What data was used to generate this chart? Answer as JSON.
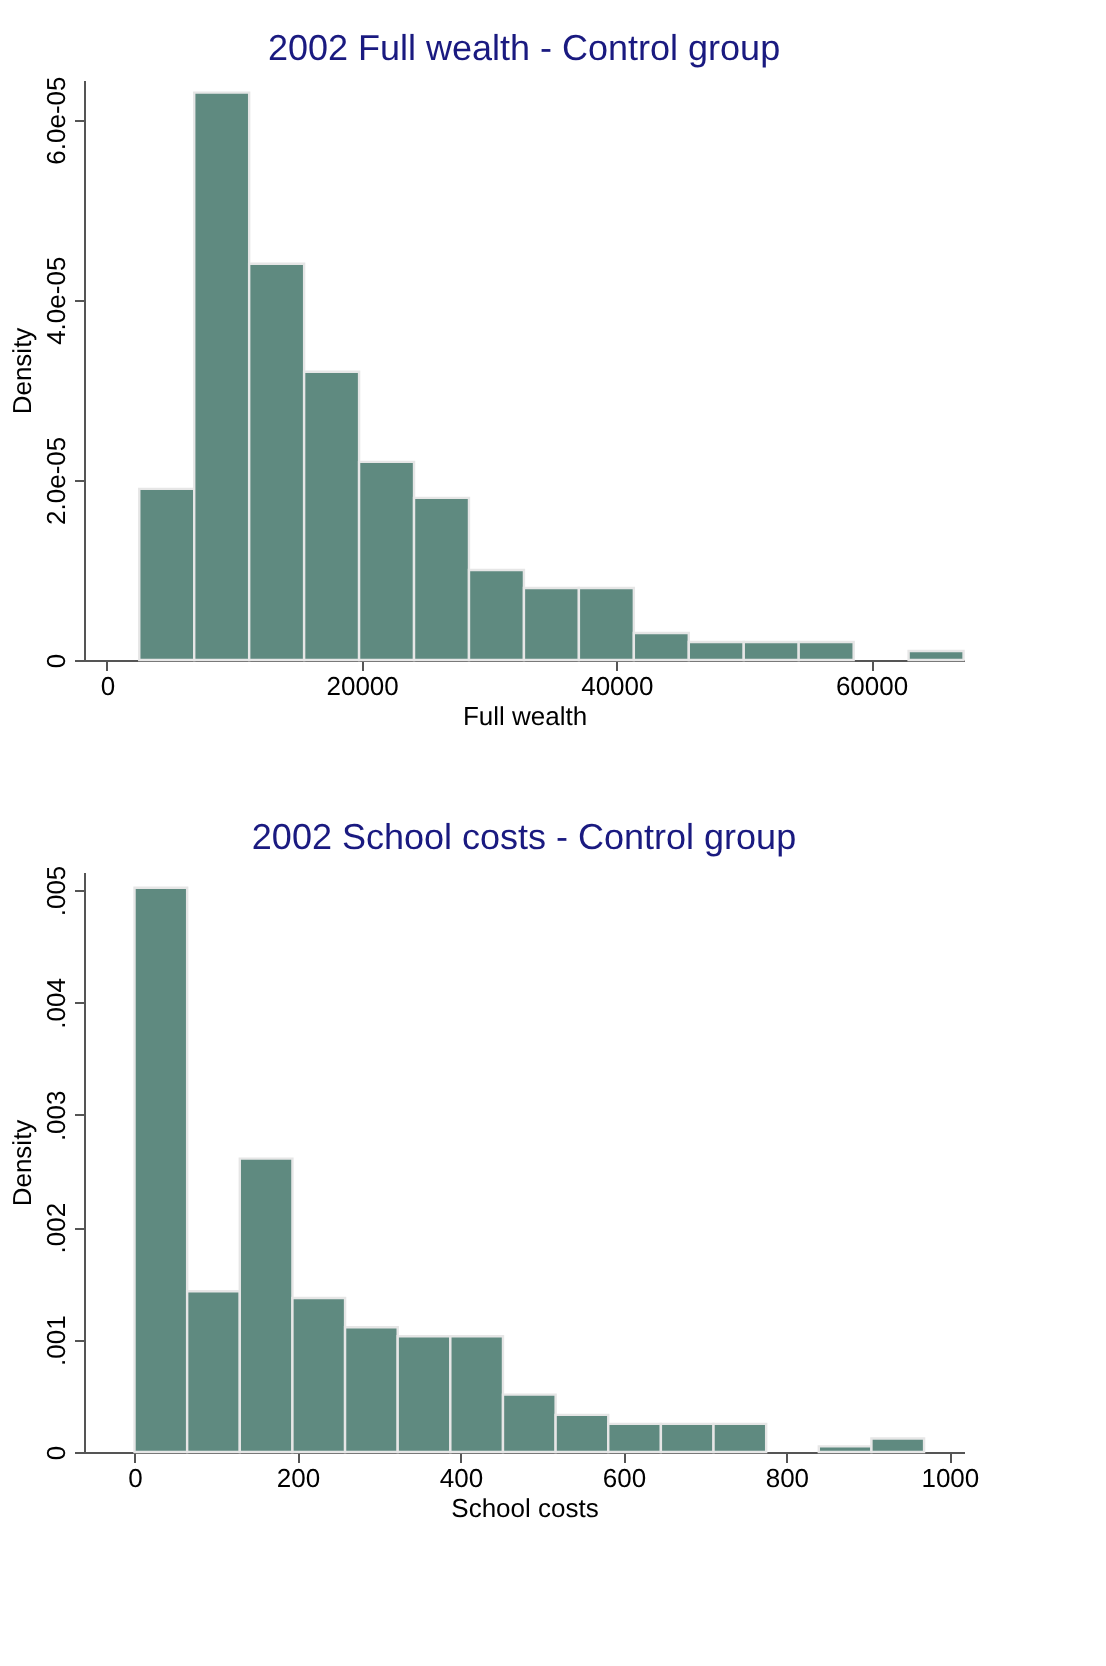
{
  "chart_data": [
    {
      "type": "histogram",
      "title": "2002 Full wealth - Control group",
      "xlabel": "Full wealth",
      "ylabel": "Density",
      "color": "#5f8a80",
      "grid": false,
      "bins": [
        2540,
        6855,
        11170,
        15485,
        19800,
        24115,
        28430,
        32745,
        37060,
        41375,
        45690,
        50005,
        54320,
        58635,
        62950,
        67265
      ],
      "values": [
        1.9e-05,
        6.3e-05,
        4.4e-05,
        3.2e-05,
        2.2e-05,
        1.8e-05,
        1e-05,
        8e-06,
        8e-06,
        3e-06,
        2e-06,
        2e-06,
        2e-06,
        0,
        1e-06
      ],
      "xlim": [
        -1800,
        67300
      ],
      "xticks": [
        0,
        20000,
        40000,
        60000
      ],
      "ylim": [
        0,
        6.44e-05
      ],
      "yticks": [
        0,
        {
          "value": 2e-05,
          "label": "2.0e-05"
        },
        {
          "value": 4e-05,
          "label": "4.0e-05"
        },
        {
          "value": 6e-05,
          "label": "6.0e-05"
        }
      ]
    },
    {
      "type": "histogram",
      "title": "2002 School costs - Control group",
      "xlabel": "School costs",
      "ylabel": "Density",
      "color": "#5f8a80",
      "grid": false,
      "bins": [
        0,
        64.6,
        129.2,
        193.8,
        258.4,
        323,
        387.6,
        452.2,
        516.8,
        581.4,
        646,
        710.6,
        775.2,
        839.8,
        904.4,
        969
      ],
      "values": [
        0.00502,
        0.00143,
        0.00261,
        0.00137,
        0.00111,
        0.00103,
        0.00103,
        0.00051,
        0.00033,
        0.00025,
        0.00025,
        0.00025,
        0,
        5e-05,
        0.00012
      ],
      "xlim": [
        -62,
        1018
      ],
      "xticks": [
        0,
        200,
        400,
        600,
        800,
        1000
      ],
      "ylim": [
        0,
        0.00516
      ],
      "yticks": [
        0,
        {
          "value": 0.001,
          "label": ".001"
        },
        {
          "value": 0.002,
          "label": ".002"
        },
        {
          "value": 0.003,
          "label": ".003"
        },
        {
          "value": 0.004,
          "label": ".004"
        },
        {
          "value": 0.005,
          "label": ".005"
        }
      ]
    }
  ]
}
